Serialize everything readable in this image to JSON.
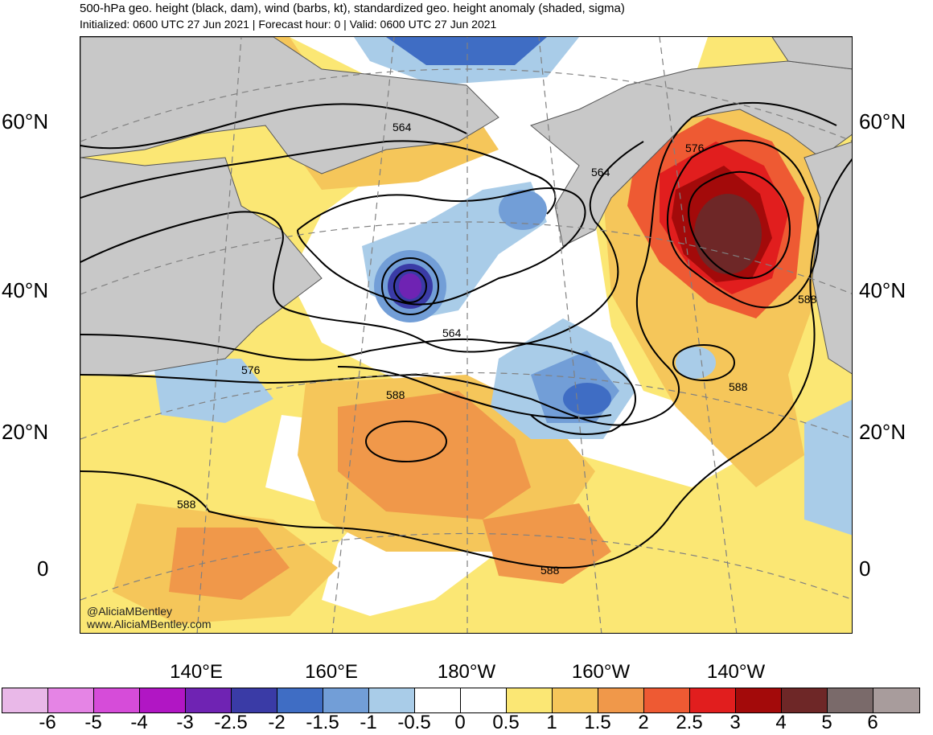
{
  "header": {
    "title": "500-hPa geo. height (black, dam), wind (barbs, kt), standardized geo. height anomaly (shaded, sigma)",
    "subtitle": "Initialized: 0600 UTC 27 Jun 2021 | Forecast hour: 0 | Valid: 0600 UTC 27 Jun 2021"
  },
  "map": {
    "lat_labels": [
      "60°N",
      "40°N",
      "20°N",
      "0"
    ],
    "lon_labels": [
      "140°E",
      "160°E",
      "180°W",
      "160°W",
      "140°W"
    ],
    "contour_labels": [
      "564",
      "576",
      "564",
      "564",
      "576",
      "588",
      "588",
      "588",
      "588",
      "588"
    ],
    "credits": [
      "@AliciaMBentley",
      "www.AliciaMBentley.com"
    ]
  },
  "colorbar": {
    "ticks": [
      "-6",
      "-5",
      "-4",
      "-3",
      "-2.5",
      "-2",
      "-1.5",
      "-1",
      "-0.5",
      "0",
      "0.5",
      "1",
      "1.5",
      "2",
      "2.5",
      "3",
      "4",
      "5",
      "6"
    ],
    "colors": [
      "#e9b8e8",
      "#e584e5",
      "#d64cd9",
      "#b116c4",
      "#6f23b3",
      "#3a3ba6",
      "#3f6dc4",
      "#729ed7",
      "#a9cce8",
      "#ffffff",
      "#ffffff",
      "#fbe774",
      "#f5c65a",
      "#f0984a",
      "#ee5a33",
      "#e11e1e",
      "#a30a0a",
      "#6e2727",
      "#7a6a6a",
      "#a89c9c"
    ]
  },
  "legend_colors": {
    "land": "#c8c8c8",
    "contour": "#000000",
    "grid": "#808080"
  }
}
